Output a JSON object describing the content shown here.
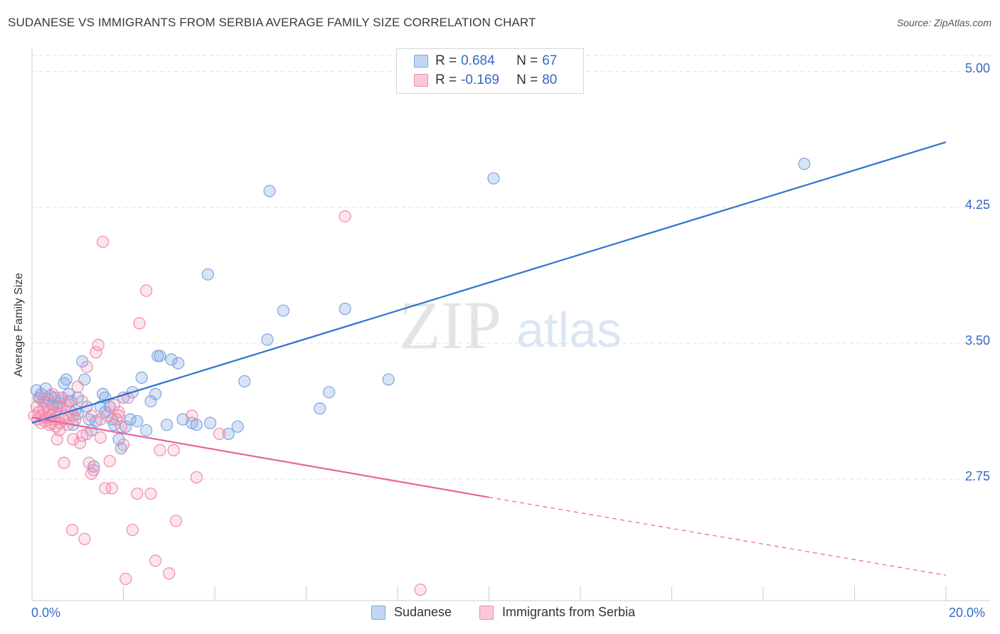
{
  "title": "SUDANESE VS IMMIGRANTS FROM SERBIA AVERAGE FAMILY SIZE CORRELATION CHART",
  "source": "Source: ZipAtlas.com",
  "watermark": {
    "zip": "ZIP",
    "atlas": "atlas"
  },
  "legend_top": [
    {
      "r_label": "R =",
      "r_value": "0.684",
      "n_label": "N =",
      "n_value": "67",
      "color": "#7ea6e0"
    },
    {
      "r_label": "R =",
      "r_value": "-0.169",
      "n_label": "N =",
      "n_value": "80",
      "color": "#f28aab"
    }
  ],
  "legend_bottom": [
    "Sudanese",
    "Immigrants from Serbia"
  ],
  "chart_data": {
    "type": "scatter",
    "title": "SUDANESE VS IMMIGRANTS FROM SERBIA AVERAGE FAMILY SIZE CORRELATION CHART",
    "xlabel": "",
    "ylabel": "Average Family Size",
    "xlim": [
      0,
      20
    ],
    "ylim": [
      2.08,
      5.1
    ],
    "x_tick_labels": [
      "0.0%",
      "20.0%"
    ],
    "y_ticks": [
      2.75,
      3.5,
      4.25,
      5.0
    ],
    "y_tick_labels": [
      "2.75",
      "3.50",
      "4.25",
      "5.00"
    ],
    "grid": "horizontal dashed",
    "legend_position": "top-center and bottom",
    "series": [
      {
        "name": "Sudanese",
        "color": "#7ea6e0",
        "line_color": "#2f72d0",
        "trend": {
          "x": [
            0,
            20
          ],
          "y": [
            3.06,
            4.61
          ],
          "dashed_after": null
        },
        "points": [
          [
            0.1,
            3.24
          ],
          [
            0.15,
            3.2
          ],
          [
            0.2,
            3.22
          ],
          [
            0.25,
            3.18
          ],
          [
            0.3,
            3.25
          ],
          [
            0.35,
            3.19
          ],
          [
            0.4,
            3.21
          ],
          [
            0.45,
            3.16
          ],
          [
            0.5,
            3.2
          ],
          [
            0.55,
            3.15
          ],
          [
            0.6,
            3.17
          ],
          [
            0.65,
            3.2
          ],
          [
            0.7,
            3.28
          ],
          [
            0.75,
            3.3
          ],
          [
            0.8,
            3.22
          ],
          [
            0.85,
            3.18
          ],
          [
            0.9,
            3.05
          ],
          [
            0.95,
            3.13
          ],
          [
            1.0,
            3.11
          ],
          [
            1.1,
            3.4
          ],
          [
            1.15,
            3.3
          ],
          [
            1.2,
            3.15
          ],
          [
            1.25,
            3.08
          ],
          [
            1.3,
            3.02
          ],
          [
            1.35,
            2.82
          ],
          [
            1.4,
            3.07
          ],
          [
            1.5,
            3.15
          ],
          [
            1.55,
            3.22
          ],
          [
            1.6,
            3.2
          ],
          [
            1.7,
            3.15
          ],
          [
            1.75,
            3.08
          ],
          [
            1.8,
            3.05
          ],
          [
            1.9,
            2.97
          ],
          [
            1.95,
            2.92
          ],
          [
            2.0,
            3.2
          ],
          [
            2.05,
            3.04
          ],
          [
            2.15,
            3.08
          ],
          [
            2.2,
            3.23
          ],
          [
            2.3,
            3.07
          ],
          [
            2.4,
            3.31
          ],
          [
            2.5,
            3.02
          ],
          [
            2.6,
            3.18
          ],
          [
            2.7,
            3.22
          ],
          [
            2.75,
            3.43
          ],
          [
            2.8,
            3.43
          ],
          [
            2.95,
            3.05
          ],
          [
            3.05,
            3.41
          ],
          [
            3.2,
            3.39
          ],
          [
            3.3,
            3.08
          ],
          [
            3.5,
            3.06
          ],
          [
            3.6,
            3.05
          ],
          [
            3.85,
            3.88
          ],
          [
            3.9,
            3.06
          ],
          [
            4.3,
            3.0
          ],
          [
            4.5,
            3.04
          ],
          [
            4.65,
            3.29
          ],
          [
            5.15,
            3.52
          ],
          [
            5.2,
            4.34
          ],
          [
            5.5,
            3.68
          ],
          [
            6.3,
            3.14
          ],
          [
            6.5,
            3.23
          ],
          [
            6.85,
            3.69
          ],
          [
            7.8,
            3.3
          ],
          [
            10.1,
            4.41
          ],
          [
            16.9,
            4.49
          ],
          [
            1.0,
            3.2
          ],
          [
            1.6,
            3.12
          ]
        ]
      },
      {
        "name": "Immigrants from Serbia",
        "color": "#f28aab",
        "line_color": "#e8659a",
        "trend": {
          "x": [
            0,
            10
          ],
          "y": [
            3.09,
            2.65
          ],
          "dashed_after": 10,
          "dashed_to": [
            20,
            2.22
          ]
        },
        "points": [
          [
            0.05,
            3.1
          ],
          [
            0.1,
            3.15
          ],
          [
            0.12,
            3.08
          ],
          [
            0.15,
            3.12
          ],
          [
            0.18,
            3.2
          ],
          [
            0.2,
            3.06
          ],
          [
            0.22,
            3.1
          ],
          [
            0.25,
            3.14
          ],
          [
            0.28,
            3.07
          ],
          [
            0.3,
            3.18
          ],
          [
            0.32,
            3.09
          ],
          [
            0.35,
            3.12
          ],
          [
            0.38,
            3.05
          ],
          [
            0.4,
            3.1
          ],
          [
            0.42,
            3.06
          ],
          [
            0.45,
            3.22
          ],
          [
            0.48,
            3.08
          ],
          [
            0.5,
            3.12
          ],
          [
            0.52,
            3.04
          ],
          [
            0.55,
            2.97
          ],
          [
            0.58,
            3.1
          ],
          [
            0.6,
            3.15
          ],
          [
            0.62,
            3.06
          ],
          [
            0.65,
            3.2
          ],
          [
            0.68,
            3.08
          ],
          [
            0.7,
            2.84
          ],
          [
            0.72,
            3.1
          ],
          [
            0.75,
            3.16
          ],
          [
            0.78,
            3.05
          ],
          [
            0.8,
            3.18
          ],
          [
            0.85,
            3.12
          ],
          [
            0.88,
            2.47
          ],
          [
            0.9,
            3.1
          ],
          [
            0.95,
            3.08
          ],
          [
            1.0,
            3.26
          ],
          [
            1.05,
            2.95
          ],
          [
            1.1,
            3.18
          ],
          [
            1.15,
            2.42
          ],
          [
            1.2,
            3.0
          ],
          [
            1.25,
            2.84
          ],
          [
            1.3,
            3.1
          ],
          [
            1.35,
            2.8
          ],
          [
            1.4,
            3.45
          ],
          [
            1.45,
            3.49
          ],
          [
            1.5,
            2.98
          ],
          [
            1.55,
            4.06
          ],
          [
            1.6,
            2.7
          ],
          [
            1.65,
            3.1
          ],
          [
            1.7,
            2.85
          ],
          [
            1.75,
            2.7
          ],
          [
            1.8,
            3.16
          ],
          [
            1.85,
            3.08
          ],
          [
            1.9,
            3.1
          ],
          [
            1.95,
            3.04
          ],
          [
            2.0,
            2.94
          ],
          [
            2.05,
            2.2
          ],
          [
            2.1,
            3.2
          ],
          [
            2.2,
            2.47
          ],
          [
            2.3,
            2.67
          ],
          [
            2.35,
            3.61
          ],
          [
            2.5,
            3.79
          ],
          [
            2.6,
            2.67
          ],
          [
            2.7,
            2.3
          ],
          [
            2.8,
            2.91
          ],
          [
            3.0,
            2.23
          ],
          [
            3.1,
            2.91
          ],
          [
            3.15,
            2.52
          ],
          [
            3.5,
            3.1
          ],
          [
            3.6,
            2.76
          ],
          [
            4.1,
            3.0
          ],
          [
            6.85,
            4.2
          ],
          [
            8.5,
            2.14
          ],
          [
            1.2,
            3.37
          ],
          [
            1.1,
            2.99
          ],
          [
            0.4,
            3.13
          ],
          [
            0.6,
            3.02
          ],
          [
            1.9,
            3.12
          ],
          [
            1.3,
            2.78
          ],
          [
            0.9,
            2.97
          ],
          [
            1.5,
            3.08
          ]
        ]
      }
    ]
  }
}
